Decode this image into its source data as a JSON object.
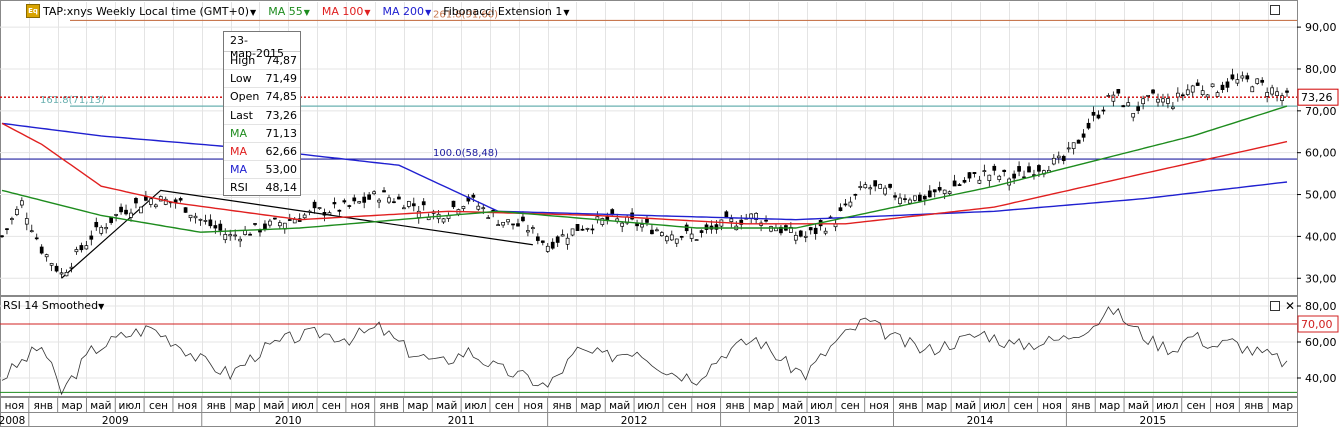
{
  "toolbar": {
    "symbol": "TAP:xnys Weekly Local time (GMT+0)",
    "ma55": "MA 55",
    "ma100": "MA 100",
    "ma200": "MA 200",
    "fib": "Fibonacci Extension 1"
  },
  "info_box": {
    "date": "23-мар-2015",
    "rows": [
      {
        "label": "High",
        "value": "74,87",
        "color": "#000000"
      },
      {
        "label": "Low",
        "value": "71,49",
        "color": "#000000"
      },
      {
        "label": "Open",
        "value": "74,85",
        "color": "#000000"
      },
      {
        "label": "Last",
        "value": "73,26",
        "color": "#000000"
      },
      {
        "label": "MA",
        "value": "71,13",
        "color": "#1e8c1e"
      },
      {
        "label": "MA",
        "value": "62,66",
        "color": "#e02020"
      },
      {
        "label": "MA",
        "value": "53,00",
        "color": "#2020d0"
      },
      {
        "label": "RSI",
        "value": "48,14",
        "color": "#000000"
      }
    ]
  },
  "rsi_panel": {
    "title": "RSI 14 Smoothed",
    "ref_label": "70,00",
    "ticks": [
      "80,00",
      "60,00",
      "40,00"
    ]
  },
  "colors": {
    "ma55": "#1e8c1e",
    "ma100": "#e02020",
    "ma200": "#2020d0",
    "fib": "#c87850",
    "last": "#d00000"
  },
  "chart_data": {
    "type": "candlestick",
    "y_ticks": [
      "90,00",
      "80,00",
      "70,00",
      "60,00",
      "50,00",
      "40,00",
      "30,00"
    ],
    "ylim": [
      26,
      96
    ],
    "last_value": "73,26",
    "last_price": 73.26,
    "fib_levels": [
      {
        "label": "261.8(91,60)",
        "value": 91.6
      },
      {
        "label": "161.8(71,13)",
        "value": 71.13
      },
      {
        "label": "100.0(58,48)",
        "value": 58.48
      }
    ],
    "x_labels": [
      "ноя",
      "янв",
      "мар",
      "май",
      "июл",
      "сен",
      "ноя",
      "янв",
      "мар",
      "май",
      "июл",
      "сен",
      "ноя",
      "янв",
      "мар",
      "май",
      "июл",
      "сен",
      "ноя",
      "янв",
      "мар",
      "май",
      "июл",
      "сен",
      "ноя",
      "янв",
      "мар",
      "май",
      "июл",
      "сен",
      "ноя",
      "янв",
      "мар",
      "май",
      "июл",
      "сен",
      "ноя",
      "янв",
      "мар",
      "май",
      "июл",
      "сен",
      "ноя",
      "янв",
      "мар"
    ],
    "years": [
      "2008",
      "2009",
      "2010",
      "2011",
      "2012",
      "2013",
      "2014",
      "2015"
    ],
    "price_keypoints": [
      [
        0,
        40
      ],
      [
        4,
        48
      ],
      [
        8,
        37
      ],
      [
        12,
        31
      ],
      [
        18,
        40
      ],
      [
        24,
        46
      ],
      [
        30,
        49
      ],
      [
        36,
        48
      ],
      [
        40,
        44
      ],
      [
        46,
        40
      ],
      [
        52,
        42
      ],
      [
        58,
        44
      ],
      [
        64,
        46
      ],
      [
        70,
        47
      ],
      [
        76,
        50
      ],
      [
        82,
        48
      ],
      [
        88,
        45
      ],
      [
        94,
        49
      ],
      [
        100,
        44
      ],
      [
        106,
        42
      ],
      [
        110,
        38
      ],
      [
        116,
        42
      ],
      [
        122,
        44
      ],
      [
        128,
        43
      ],
      [
        134,
        41
      ],
      [
        140,
        40
      ],
      [
        146,
        43
      ],
      [
        152,
        45
      ],
      [
        158,
        41
      ],
      [
        162,
        40
      ],
      [
        168,
        44
      ],
      [
        174,
        52
      ],
      [
        180,
        50
      ],
      [
        186,
        49
      ],
      [
        192,
        52
      ],
      [
        198,
        55
      ],
      [
        204,
        54
      ],
      [
        210,
        57
      ],
      [
        214,
        58
      ],
      [
        220,
        68
      ],
      [
        224,
        74
      ],
      [
        228,
        70
      ],
      [
        232,
        73
      ],
      [
        236,
        72
      ],
      [
        240,
        76
      ],
      [
        244,
        75
      ],
      [
        248,
        77
      ],
      [
        252,
        77
      ],
      [
        256,
        75
      ],
      [
        259,
        73
      ]
    ],
    "ma55_keypoints": [
      [
        0,
        51
      ],
      [
        20,
        45
      ],
      [
        40,
        41
      ],
      [
        60,
        42
      ],
      [
        80,
        44
      ],
      [
        100,
        46
      ],
      [
        120,
        44
      ],
      [
        140,
        42
      ],
      [
        160,
        42
      ],
      [
        180,
        47
      ],
      [
        200,
        52
      ],
      [
        220,
        58
      ],
      [
        240,
        64
      ],
      [
        259,
        71.13
      ]
    ],
    "ma100_keypoints": [
      [
        0,
        67
      ],
      [
        8,
        62
      ],
      [
        20,
        52
      ],
      [
        35,
        48
      ],
      [
        60,
        44
      ],
      [
        90,
        46
      ],
      [
        120,
        45
      ],
      [
        150,
        43
      ],
      [
        170,
        43
      ],
      [
        200,
        47
      ],
      [
        230,
        55
      ],
      [
        259,
        62.66
      ]
    ],
    "ma200_keypoints": [
      [
        0,
        67
      ],
      [
        20,
        64
      ],
      [
        50,
        61
      ],
      [
        80,
        57
      ],
      [
        100,
        46
      ],
      [
        130,
        45
      ],
      [
        160,
        44
      ],
      [
        200,
        46
      ],
      [
        230,
        49
      ],
      [
        259,
        53
      ]
    ],
    "rsi_keypoints": [
      [
        0,
        40
      ],
      [
        8,
        58
      ],
      [
        12,
        32
      ],
      [
        18,
        55
      ],
      [
        24,
        63
      ],
      [
        30,
        68
      ],
      [
        36,
        58
      ],
      [
        40,
        50
      ],
      [
        46,
        42
      ],
      [
        52,
        55
      ],
      [
        58,
        62
      ],
      [
        64,
        65
      ],
      [
        70,
        62
      ],
      [
        76,
        68
      ],
      [
        82,
        55
      ],
      [
        88,
        48
      ],
      [
        94,
        55
      ],
      [
        100,
        45
      ],
      [
        106,
        40
      ],
      [
        110,
        35
      ],
      [
        116,
        55
      ],
      [
        122,
        52
      ],
      [
        128,
        56
      ],
      [
        134,
        44
      ],
      [
        140,
        40
      ],
      [
        146,
        55
      ],
      [
        152,
        62
      ],
      [
        158,
        48
      ],
      [
        162,
        42
      ],
      [
        168,
        60
      ],
      [
        174,
        72
      ],
      [
        180,
        62
      ],
      [
        186,
        55
      ],
      [
        192,
        60
      ],
      [
        198,
        65
      ],
      [
        204,
        58
      ],
      [
        210,
        60
      ],
      [
        214,
        62
      ],
      [
        220,
        70
      ],
      [
        224,
        78
      ],
      [
        228,
        68
      ],
      [
        232,
        60
      ],
      [
        236,
        56
      ],
      [
        240,
        64
      ],
      [
        244,
        58
      ],
      [
        248,
        60
      ],
      [
        252,
        55
      ],
      [
        256,
        52
      ],
      [
        259,
        48
      ]
    ],
    "rsi_ylim": [
      30,
      85
    ],
    "rsi_ref": 70,
    "n_bars": 260
  }
}
